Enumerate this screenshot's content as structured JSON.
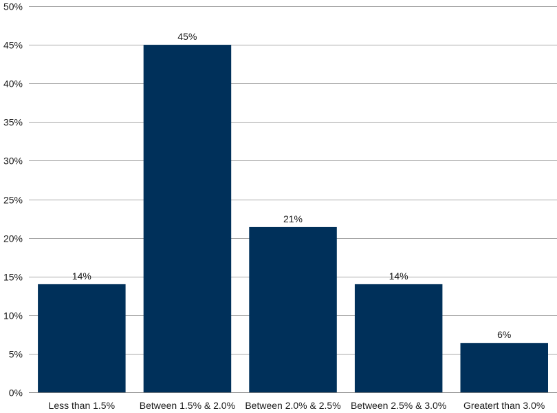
{
  "chart_data": {
    "type": "bar",
    "title": "",
    "xlabel": "",
    "ylabel": "",
    "categories": [
      "Less than 1.5%",
      "Between 1.5% & 2.0%",
      "Between 2.0% & 2.5%",
      "Between 2.5% & 3.0%",
      "Greatert than 3.0%"
    ],
    "values": [
      14,
      45,
      21.4,
      14,
      6.4
    ],
    "data_labels": [
      "14%",
      "45%",
      "21%",
      "14%",
      "6%"
    ],
    "ylim": [
      0,
      50
    ],
    "y_ticks": [
      0,
      5,
      10,
      15,
      20,
      25,
      30,
      35,
      40,
      45,
      50
    ],
    "y_tick_labels": [
      "0%",
      "5%",
      "10%",
      "15%",
      "20%",
      "25%",
      "30%",
      "35%",
      "40%",
      "45%",
      "50%"
    ],
    "grid": true,
    "legend": "none",
    "colors": {
      "bar": "#00305a",
      "grid": "#a6a6a6",
      "axis": "#7f7f7f"
    }
  }
}
